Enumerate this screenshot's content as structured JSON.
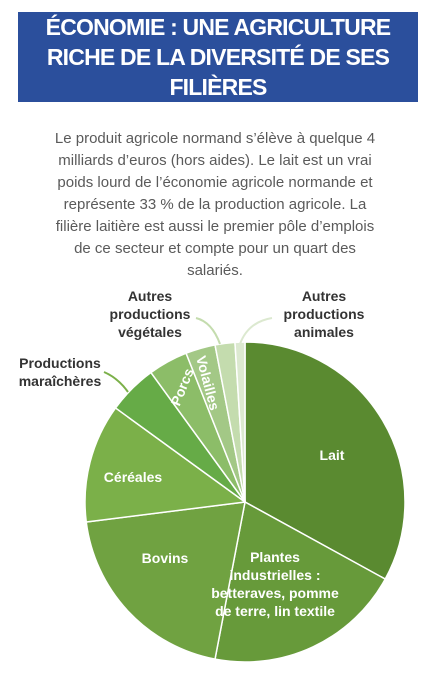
{
  "header": {
    "title": "ÉCONOMIE : UNE AGRICULTURE RICHE DE LA DIVERSITÉ DE SES FILIÈRES"
  },
  "intro": "Le produit agricole normand s’élève à quelque 4 milliards d’euros (hors aides). Le lait est un vrai poids lourd de l’économie agricole normande et représente 33 % de la production agricole. La filière laitière est aussi le premier pôle d’emplois de ce secteur et compte pour un quart des salariés.",
  "chart_data": {
    "type": "pie",
    "categories": [
      "Lait",
      "Plantes industrielles : betteraves, pomme de terre, lin textile",
      "Bovins",
      "Céréales",
      "Productions maraîchères",
      "Porcs",
      "Volailles",
      "Autres productions végétales",
      "Autres productions animales"
    ],
    "values": [
      33,
      20,
      20,
      12,
      5,
      4,
      3,
      2,
      1
    ],
    "colors": [
      "#5a8a30",
      "#679a3a",
      "#70a241",
      "#7bb049",
      "#66ab47",
      "#8cbd68",
      "#a3c886",
      "#c4dcae",
      "#dce9d0"
    ]
  }
}
